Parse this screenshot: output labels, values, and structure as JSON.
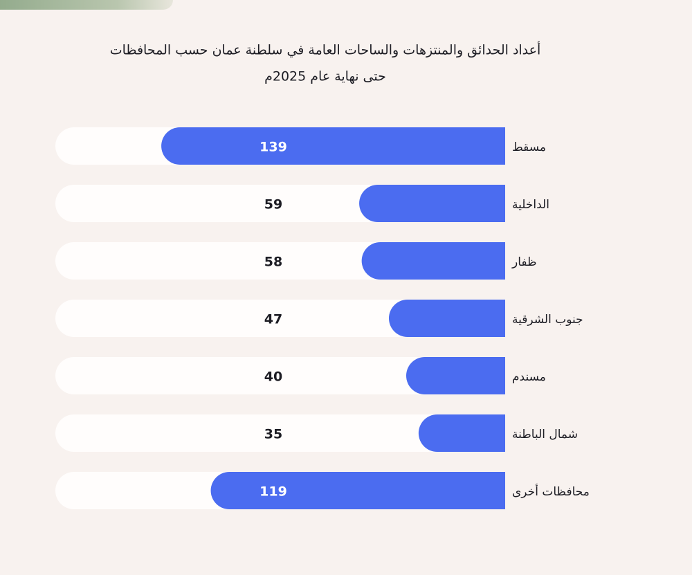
{
  "chart_data": {
    "type": "bar",
    "title": "أعداد الحدائق والمنتزهات والساحات العامة في سلطنة عمان حسب المحافظات",
    "subtitle": "حتى نهاية عام 2025م",
    "categories": [
      "مسقط",
      "الداخلية",
      "ظفار",
      "جنوب الشرقية",
      "مسندم",
      "شمال الباطنة",
      "محافظات أخرى"
    ],
    "values": [
      139,
      59,
      58,
      47,
      40,
      35,
      119
    ],
    "color": "#4b6cf0"
  }
}
